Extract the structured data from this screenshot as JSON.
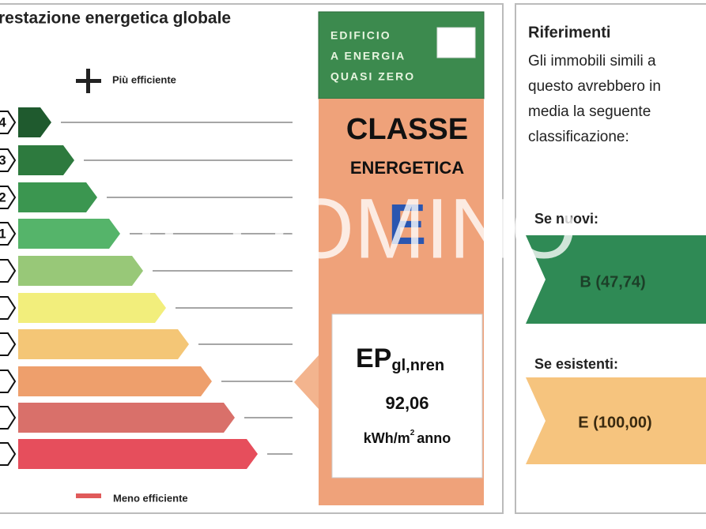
{
  "left": {
    "title": "restazione energetica globale",
    "top_label": "Più efficiente",
    "bottom_label": "Meno efficiente",
    "class_labels": [
      "4",
      "3",
      "2",
      "1"
    ]
  },
  "nzeb": {
    "lines": [
      "EDIFICIO",
      "A ENERGIA",
      "QUASI ZERO"
    ]
  },
  "class_box": {
    "title": "CLASSE",
    "subtitle": "ENERGETICA",
    "class": "E"
  },
  "ep": {
    "symbol": "EP",
    "subscript": "gl,nren",
    "value": "92,06",
    "unit": "kWh/m",
    "unit_exp": "2",
    "unit_suffix": "anno"
  },
  "references": {
    "title": "Riferimenti",
    "text_lines": [
      "Gli immobili simili a",
      "questo avrebbero in",
      "media la seguente",
      "classificazione:"
    ],
    "new_label": "Se nuovi:",
    "new_value": "B (47,74)",
    "existing_label": "Se esistenti:",
    "existing_value": "E (100,00)"
  },
  "watermark": "IL DOMINO"
}
